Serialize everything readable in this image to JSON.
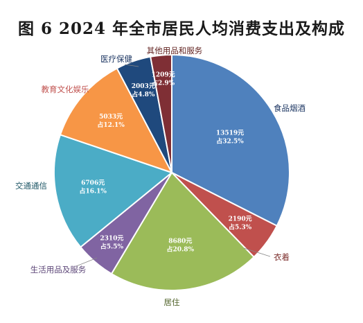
{
  "chart_data": {
    "type": "pie",
    "title": "图 6   2024 年全市居民人均消费支出及构成",
    "start_angle_deg": 0,
    "direction": "clockwise",
    "slices": [
      {
        "category": "食品烟酒",
        "value": 13519,
        "value_text": "13519元",
        "share_text": "占32.5%",
        "color": "#4F81BD",
        "label_color": "#1F3864"
      },
      {
        "category": "衣着",
        "value": 2190,
        "value_text": "2190元",
        "share_text": "占5.3%",
        "color": "#C0504D",
        "label_color": "#7B2C2A"
      },
      {
        "category": "居住",
        "value": 8680,
        "value_text": "8680元",
        "share_text": "占20.8%",
        "color": "#9BBB59",
        "label_color": "#4F6228"
      },
      {
        "category": "生活用品及服务",
        "value": 2310,
        "value_text": "2310元",
        "share_text": "占5.5%",
        "color": "#8064A2",
        "label_color": "#5F497A"
      },
      {
        "category": "交通通信",
        "value": 6706,
        "value_text": "6706元",
        "share_text": "占16.1%",
        "color": "#4BACC6",
        "label_color": "#215968"
      },
      {
        "category": "教育文化娱乐",
        "value": 5033,
        "value_text": "5033元",
        "share_text": "占12.1%",
        "color": "#F79646",
        "label_color": "#C0504D"
      },
      {
        "category": "医疗保健",
        "value": 2003,
        "value_text": "2003元",
        "share_text": "占4.8%",
        "color": "#1F497D",
        "label_color": "#1F3864"
      },
      {
        "category": "其他用品和服务",
        "value": 1209,
        "value_text": "1209元",
        "share_text": "占2.9%",
        "color": "#7F2F35",
        "label_color": "#632523"
      }
    ]
  }
}
